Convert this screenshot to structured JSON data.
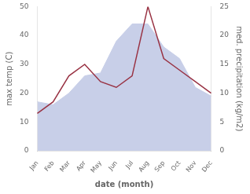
{
  "chart_data": {
    "type": "line",
    "xlabel": "date (month)",
    "ylabel": "max temp (C)",
    "y2label": "med. precipitation (kg/m2)",
    "categories": [
      "Jan",
      "Feb",
      "Mar",
      "Apr",
      "May",
      "Jun",
      "Jul",
      "Aug",
      "Sep",
      "Oct",
      "Nov",
      "Dec"
    ],
    "series": [
      {
        "type": "area",
        "color": "#c8cfe8",
        "values": [
          17,
          16,
          20,
          26,
          27,
          38,
          44,
          44,
          36,
          32,
          22,
          19
        ]
      },
      {
        "type": "line",
        "color": "#993344",
        "axis": "y2",
        "values": [
          6.5,
          8.5,
          13,
          15,
          12,
          11,
          13,
          25,
          16,
          14,
          12,
          10
        ]
      }
    ],
    "ylim": [
      0,
      50
    ],
    "yticks": [
      0,
      10,
      20,
      30,
      40,
      50
    ],
    "y2lim": [
      0,
      25
    ],
    "y2ticks": [
      0,
      5,
      10,
      15,
      20,
      25
    ],
    "grid": false
  }
}
